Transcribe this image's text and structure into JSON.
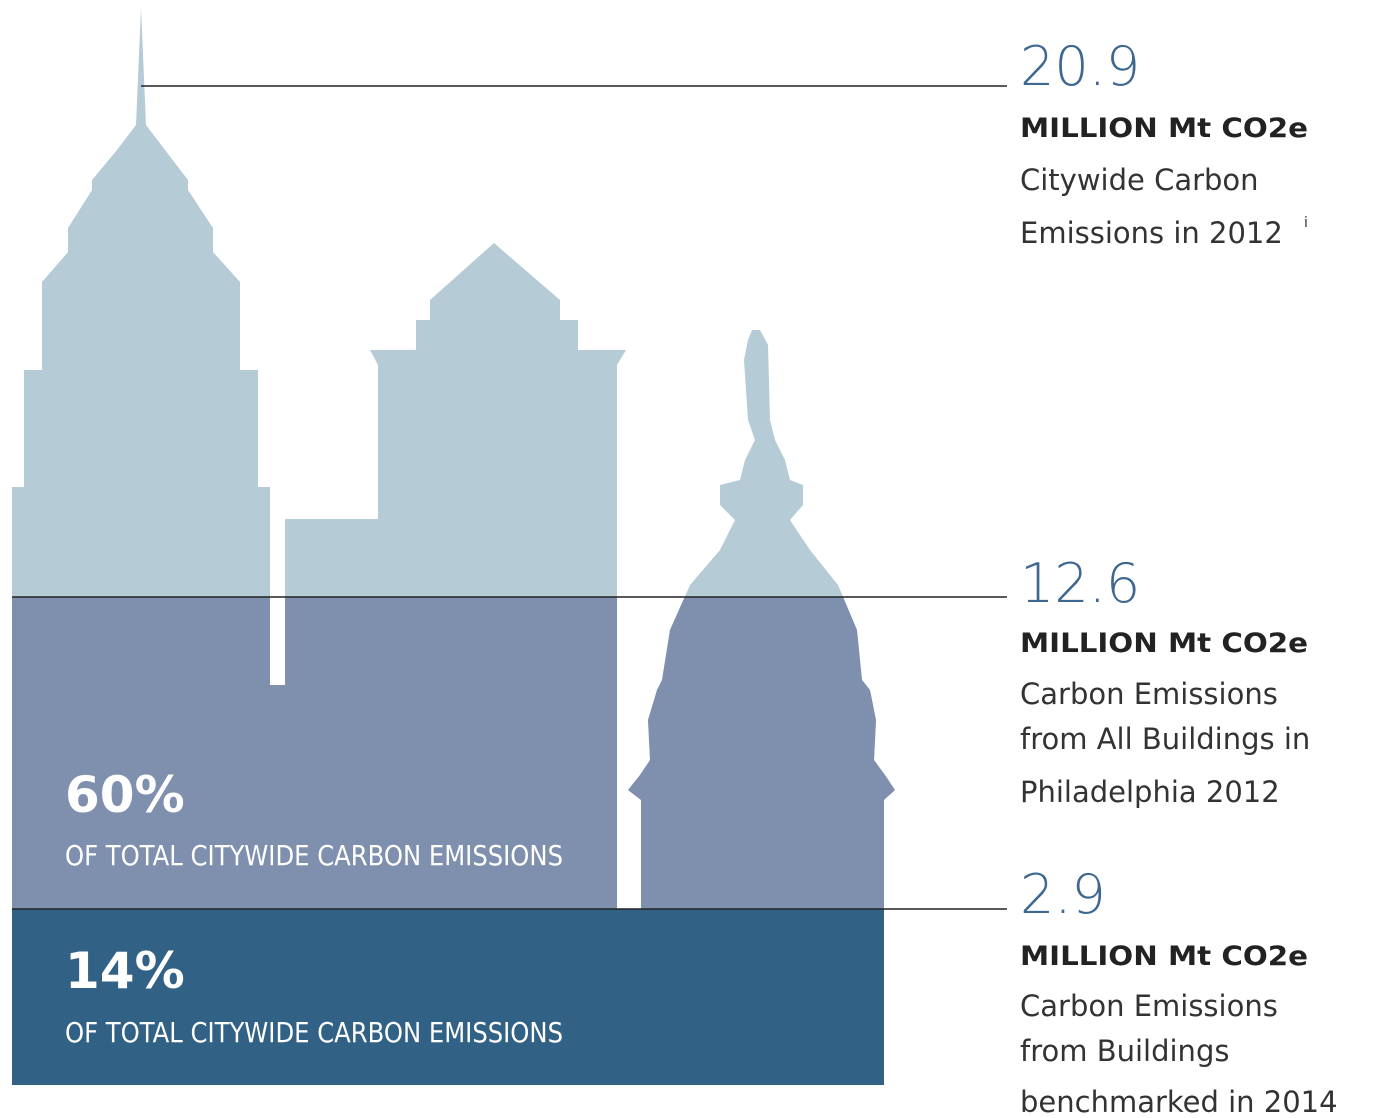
{
  "callouts": [
    {
      "value": "20.9",
      "unit": "MILLION Mt CO2e",
      "lines": [
        "Citywide Carbon",
        "Emissions in 2012"
      ],
      "note": "i"
    },
    {
      "value": "12.6",
      "unit": "MILLION Mt CO2e",
      "lines": [
        "Carbon Emissions",
        "from All Buildings in",
        "Philadelphia 2012"
      ]
    },
    {
      "value": "2.9",
      "unit": "MILLION Mt CO2e",
      "lines": [
        "Carbon Emissions",
        "from Buildings",
        "benchmarked in 2014"
      ]
    }
  ],
  "shares": [
    {
      "value": "60%",
      "label": "OF TOTAL CITYWIDE CARBON EMISSIONS"
    },
    {
      "value": "14%",
      "label": "OF TOTAL CITYWIDE CARBON EMISSIONS"
    }
  ]
}
